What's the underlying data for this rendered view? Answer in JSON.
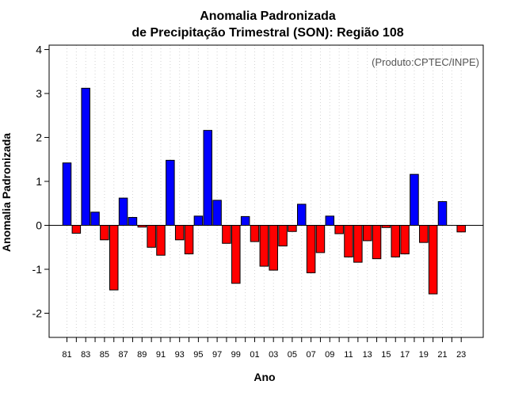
{
  "chart_data": {
    "type": "bar",
    "title": "Anomalia Padronizada",
    "subtitle": "de Precipitação Trimestral (SON): Região 108",
    "xlabel": "Ano",
    "ylabel": "Anomalia Padronizada",
    "annotation": "(Produto:CPTEC/INPE)",
    "ylim": [
      -2.55,
      4.1
    ],
    "yticks": [
      -2,
      -1,
      0,
      1,
      2,
      3,
      4
    ],
    "grid": "vertical-dotted",
    "positive_color": "#0000ff",
    "negative_color": "#ff0000",
    "x": [
      1981,
      1982,
      1983,
      1984,
      1985,
      1986,
      1987,
      1988,
      1989,
      1990,
      1991,
      1992,
      1993,
      1994,
      1995,
      1996,
      1997,
      1998,
      1999,
      2000,
      2001,
      2002,
      2003,
      2004,
      2005,
      2006,
      2007,
      2008,
      2009,
      2010,
      2011,
      2012,
      2013,
      2014,
      2015,
      2016,
      2017,
      2018,
      2019,
      2020,
      2021,
      2022,
      2023
    ],
    "values": [
      1.42,
      -0.18,
      3.12,
      0.3,
      -0.33,
      -1.47,
      0.62,
      0.18,
      -0.04,
      -0.5,
      -0.68,
      1.48,
      -0.33,
      -0.65,
      0.21,
      2.16,
      0.57,
      -0.41,
      -1.32,
      0.2,
      -0.37,
      -0.93,
      -1.02,
      -0.47,
      -0.14,
      0.48,
      -1.08,
      -0.62,
      0.21,
      -0.19,
      -0.72,
      -0.84,
      -0.35,
      -0.76,
      -0.05,
      -0.72,
      -0.65,
      1.16,
      -0.39,
      -1.56,
      0.54,
      0.0,
      -0.15
    ],
    "xtick_labels": [
      "81",
      "83",
      "85",
      "87",
      "89",
      "91",
      "93",
      "95",
      "97",
      "99",
      "01",
      "03",
      "05",
      "07",
      "09",
      "11",
      "13",
      "15",
      "17",
      "19",
      "21",
      "23"
    ]
  }
}
